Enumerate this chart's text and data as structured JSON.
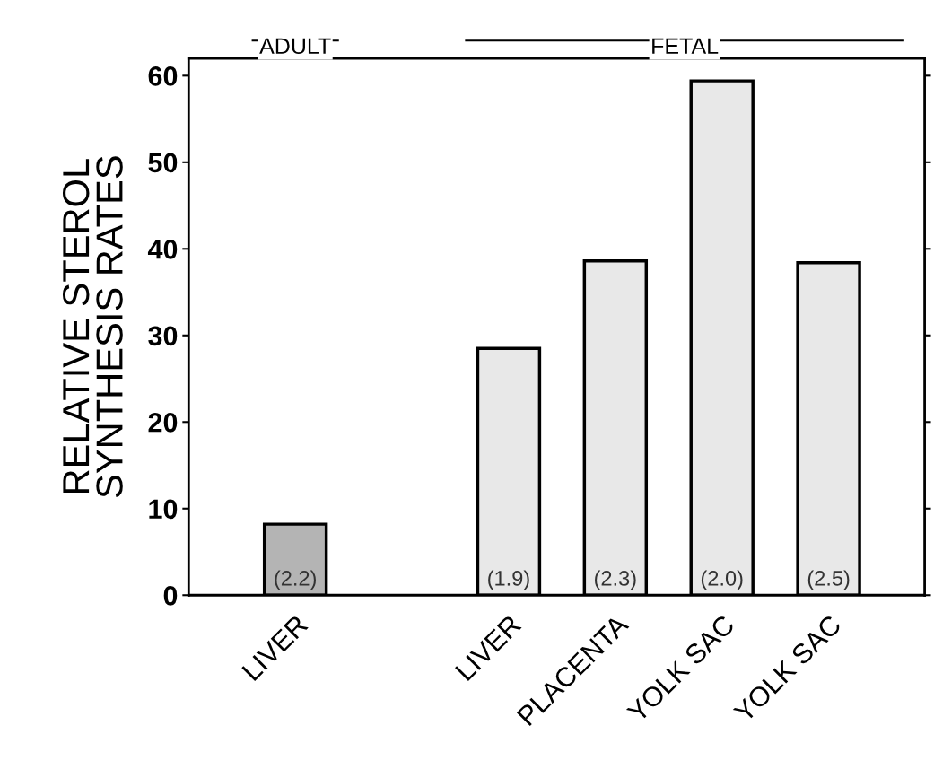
{
  "chart_data": {
    "type": "bar",
    "ylabel": "RELATIVE STEROL\nSYNTHESIS RATES",
    "categories": [
      "LIVER",
      null,
      "LIVER",
      "PLACENTA",
      "YOLK SAC",
      "YOLK SAC"
    ],
    "values": [
      8.2,
      null,
      28.5,
      38.6,
      59.4,
      38.4
    ],
    "colors": [
      "#b4b4b4",
      "#e8e8e8",
      "#e8e8e8",
      "#e8e8e8",
      "#e8e8e8",
      "#e8e8e8"
    ],
    "annotations": [
      "ADULT",
      "FETAL",
      "(2.2)",
      "(1.9)",
      "(2.3)",
      "(2.0)",
      "(2.5)"
    ],
    "ylim": [
      0,
      62
    ],
    "yticks": [
      0,
      10,
      20,
      30,
      40,
      50,
      60
    ],
    "grid": false
  }
}
